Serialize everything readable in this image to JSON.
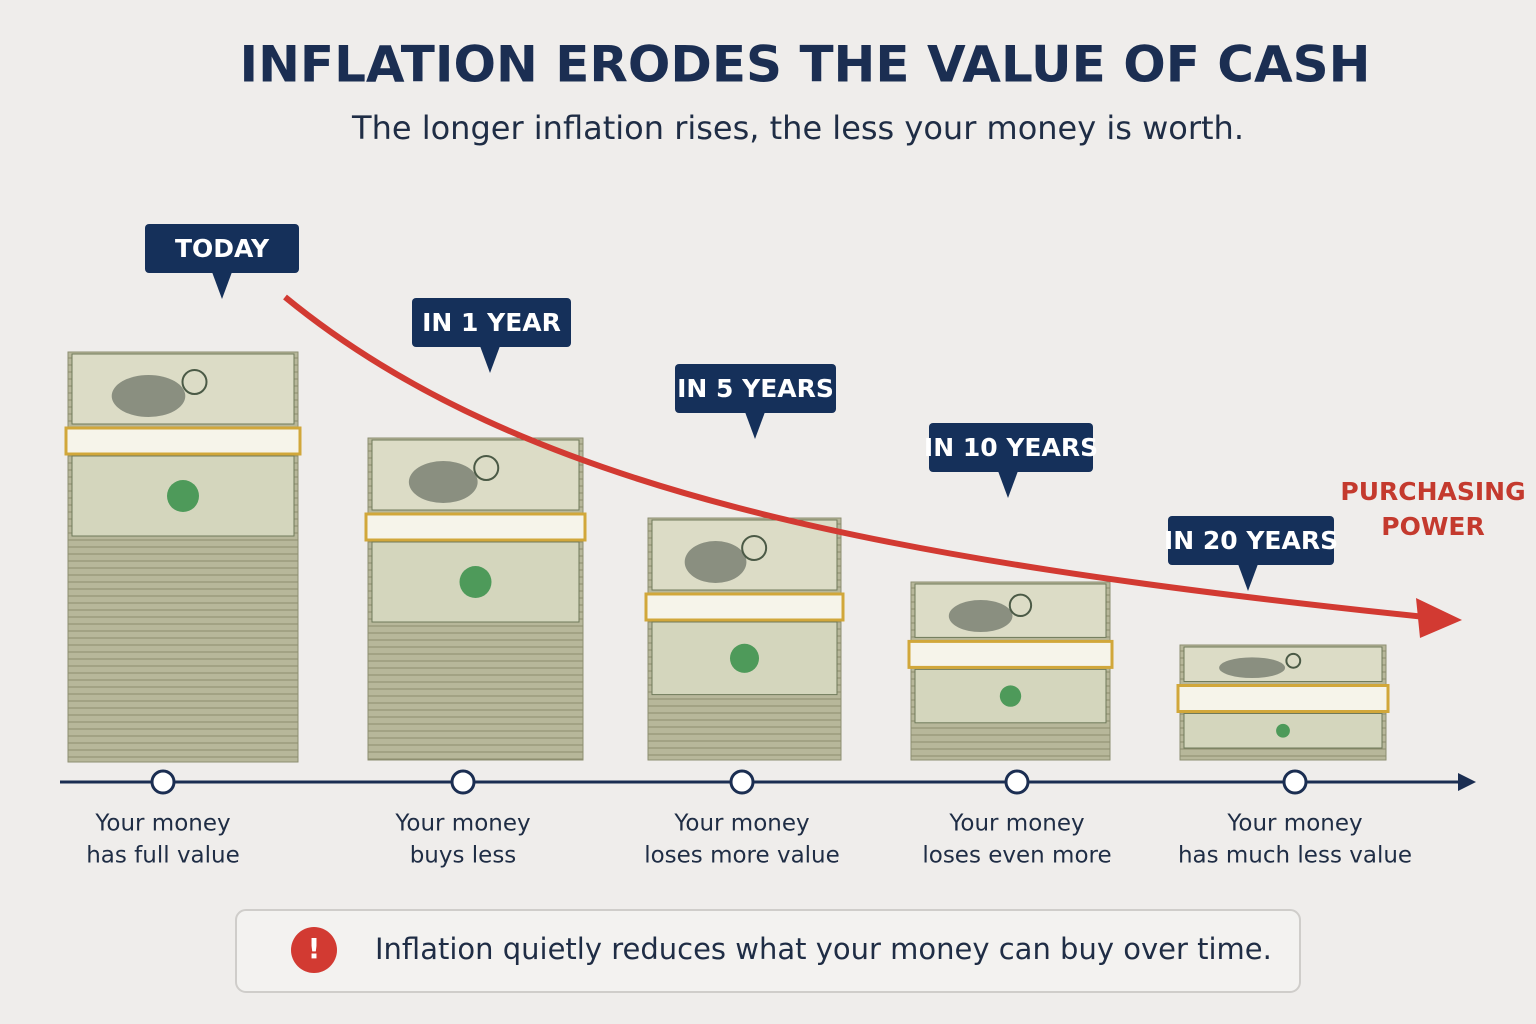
{
  "header": {
    "title": "INFLATION ERODES THE VALUE OF CASH",
    "subtitle": "The longer inflation rises, the less your money is worth."
  },
  "stages": [
    {
      "tag": "TODAY",
      "caption": [
        "Your money",
        "has full value"
      ]
    },
    {
      "tag": "IN 1 YEAR",
      "caption": [
        "Your money",
        "buys less"
      ]
    },
    {
      "tag": "IN 5 YEARS",
      "caption": [
        "Your money",
        "loses more value"
      ]
    },
    {
      "tag": "IN 10 YEARS",
      "caption": [
        "Your money",
        "loses even more"
      ]
    },
    {
      "tag": "IN 20 YEARS",
      "caption": [
        "Your money",
        "has much less value"
      ]
    }
  ],
  "curve_label": [
    "PURCHASING",
    "POWER"
  ],
  "footer": {
    "icon": "!",
    "note": "Inflation quietly reduces what your money can buy over time."
  }
}
